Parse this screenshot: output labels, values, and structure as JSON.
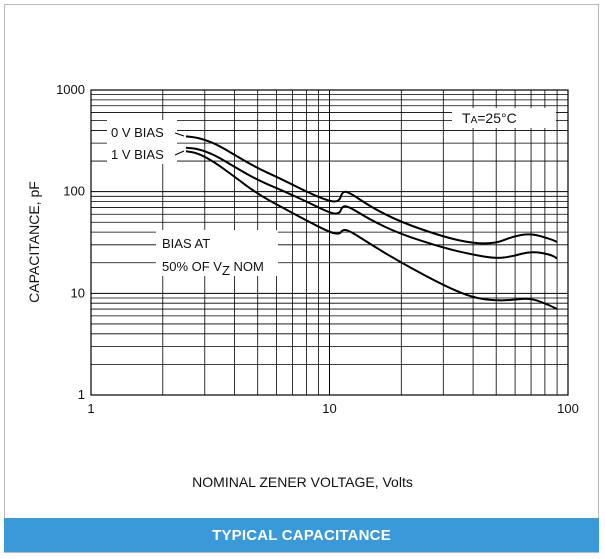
{
  "banner": {
    "title": "TYPICAL CAPACITANCE"
  },
  "chart_data": {
    "type": "line",
    "xlabel": "NOMINAL ZENER VOLTAGE, Volts",
    "ylabel": "CAPACITANCE, pF",
    "xscale": "log",
    "yscale": "log",
    "xlim": [
      1,
      100
    ],
    "ylim": [
      1,
      1000
    ],
    "grid": true,
    "x_ticks": [
      "1",
      "10",
      "100"
    ],
    "y_ticks": [
      "1",
      "10",
      "100",
      "1000"
    ],
    "annotations": {
      "temperature": {
        "prefix": "T",
        "sub": "A",
        "suffix": "=25°C"
      },
      "bias_note_line1": "BIAS AT",
      "bias_note_line2_prefix": "50% OF V",
      "bias_note_line2_sub": "Z",
      "bias_note_line2_suffix": " NOM"
    },
    "series": [
      {
        "name": "0 V BIAS",
        "x": [
          2.5,
          2.8,
          3.3,
          4,
          5,
          6.2,
          8,
          10,
          11,
          11.3,
          12,
          15,
          20,
          30,
          40,
          50,
          58,
          70,
          85,
          90
        ],
        "y": [
          350,
          340,
          300,
          230,
          170,
          135,
          100,
          80,
          80,
          100,
          100,
          70,
          50,
          36,
          31,
          31,
          36,
          39,
          34,
          32
        ]
      },
      {
        "name": "1 V BIAS",
        "x": [
          2.5,
          2.8,
          3.3,
          4,
          5,
          6.2,
          8,
          10,
          11,
          11.3,
          12,
          15,
          20,
          30,
          40,
          50,
          58,
          70,
          85,
          90
        ],
        "y": [
          270,
          265,
          230,
          175,
          130,
          105,
          80,
          62,
          60,
          72,
          72,
          52,
          38,
          28,
          24,
          22,
          23,
          26,
          24,
          22
        ]
      },
      {
        "name": "BIAS AT 50% OF VZ NOM",
        "x": [
          2.5,
          2.8,
          3.3,
          4,
          5,
          6.2,
          8,
          10,
          11,
          11.3,
          12,
          15,
          20,
          30,
          40,
          50,
          58,
          70,
          85,
          90
        ],
        "y": [
          250,
          240,
          195,
          140,
          95,
          72,
          52,
          40,
          38,
          42,
          42,
          30,
          20,
          12,
          9,
          8.5,
          8.6,
          9,
          7.5,
          7
        ]
      }
    ]
  }
}
